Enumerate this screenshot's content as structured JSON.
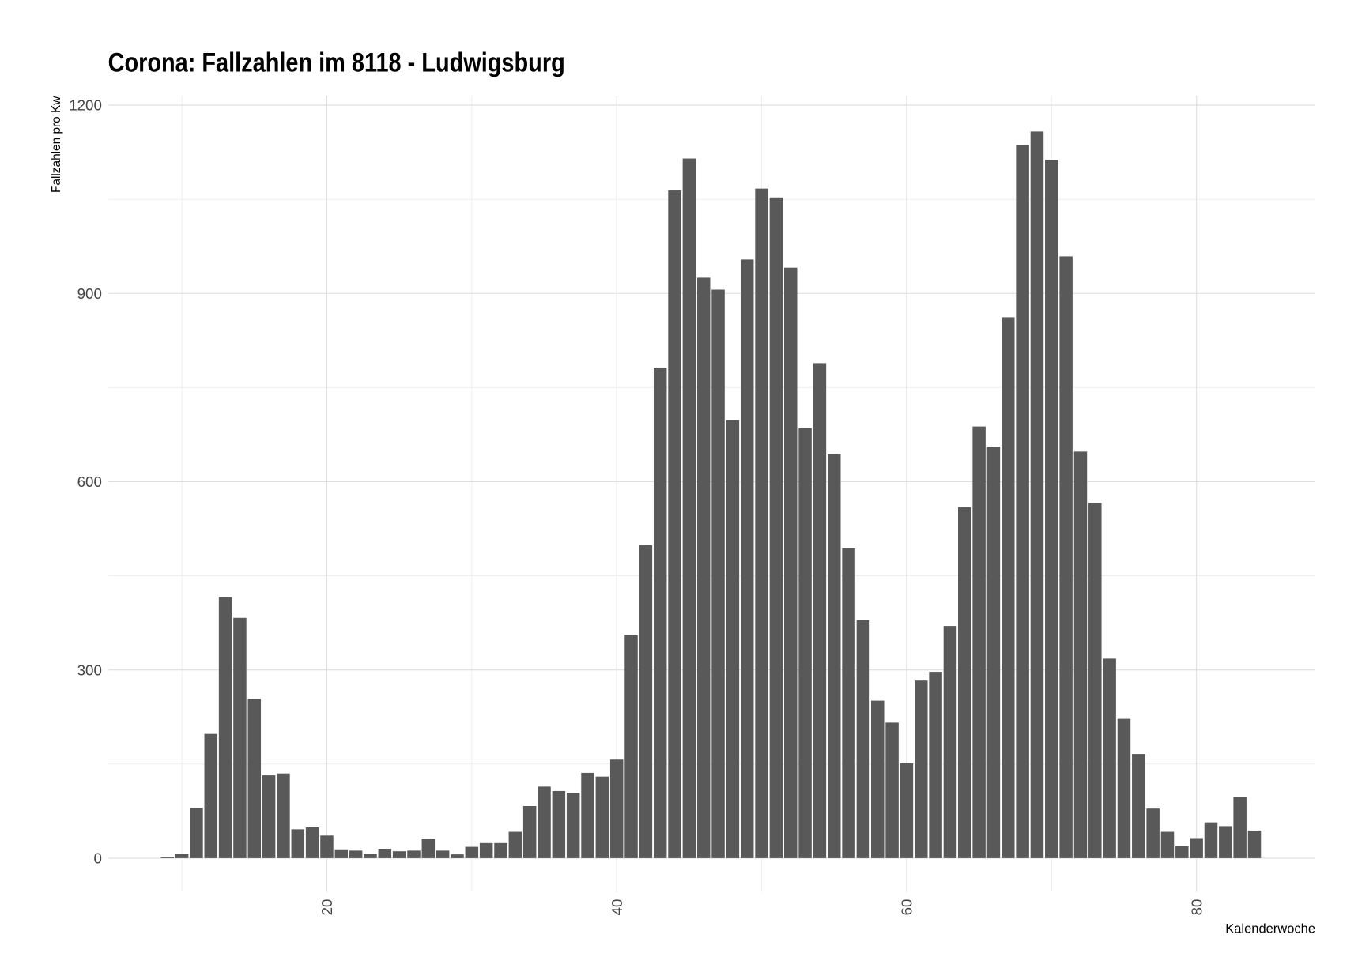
{
  "chart_data": {
    "type": "bar",
    "title": "Corona: Fallzahlen im 8118 - Ludwigsburg",
    "xlabel": "Kalenderwoche",
    "ylabel": "Fallzahlen pro Kw",
    "x": [
      9,
      10,
      11,
      12,
      13,
      14,
      15,
      16,
      17,
      18,
      19,
      20,
      21,
      22,
      23,
      24,
      25,
      26,
      27,
      28,
      29,
      30,
      31,
      32,
      33,
      34,
      35,
      36,
      37,
      38,
      39,
      40,
      41,
      42,
      43,
      44,
      45,
      46,
      47,
      48,
      49,
      50,
      51,
      52,
      53,
      54,
      55,
      56,
      57,
      58,
      59,
      60,
      61,
      62,
      63,
      64,
      65,
      66,
      67,
      68,
      69,
      70,
      71,
      72,
      73,
      74,
      75,
      76,
      77,
      78,
      79,
      80,
      81,
      82,
      83,
      84
    ],
    "values": [
      2,
      7,
      80,
      198,
      416,
      383,
      254,
      132,
      135,
      46,
      49,
      36,
      14,
      12,
      7,
      15,
      11,
      12,
      31,
      12,
      6,
      18,
      24,
      24,
      42,
      83,
      114,
      107,
      104,
      136,
      130,
      157,
      355,
      499,
      782,
      1064,
      1115,
      925,
      906,
      698,
      954,
      1067,
      1053,
      941,
      685,
      789,
      644,
      494,
      379,
      251,
      216,
      151,
      283,
      297,
      370,
      559,
      688,
      656,
      862,
      1136,
      1158,
      1113,
      959,
      648,
      566,
      318,
      222,
      166,
      79,
      42,
      19,
      32,
      57,
      51,
      98,
      44
    ],
    "color": "#595959",
    "xlim": [
      4.9,
      88.2
    ],
    "ylim": [
      -54,
      1215
    ],
    "xticks": [
      20,
      40,
      60,
      80
    ],
    "yticks": [
      0,
      300,
      600,
      900,
      1200
    ],
    "minor_xticks": [
      10,
      30,
      50,
      70
    ],
    "minor_yticks": [
      150,
      450,
      750,
      1050
    ],
    "grid": true
  }
}
